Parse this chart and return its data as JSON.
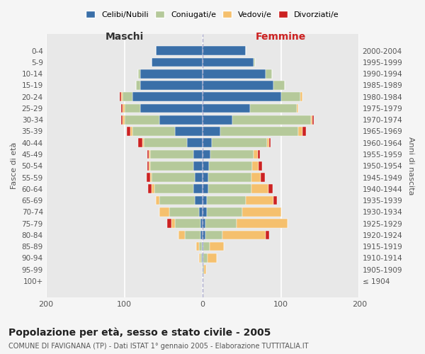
{
  "age_groups": [
    "100+",
    "95-99",
    "90-94",
    "85-89",
    "80-84",
    "75-79",
    "70-74",
    "65-69",
    "60-64",
    "55-59",
    "50-54",
    "45-49",
    "40-44",
    "35-39",
    "30-34",
    "25-29",
    "20-24",
    "15-19",
    "10-14",
    "5-9",
    "0-4"
  ],
  "birth_years": [
    "≤ 1904",
    "1905-1909",
    "1910-1914",
    "1915-1919",
    "1920-1924",
    "1925-1929",
    "1930-1934",
    "1935-1939",
    "1940-1944",
    "1945-1949",
    "1950-1954",
    "1955-1959",
    "1960-1964",
    "1965-1969",
    "1970-1974",
    "1975-1979",
    "1980-1984",
    "1985-1989",
    "1990-1994",
    "1995-1999",
    "2000-2004"
  ],
  "male_celibi": [
    0,
    0,
    1,
    1,
    3,
    3,
    5,
    10,
    12,
    10,
    12,
    12,
    20,
    35,
    55,
    80,
    90,
    80,
    80,
    65,
    60
  ],
  "male_coniugati": [
    0,
    0,
    2,
    4,
    20,
    32,
    38,
    45,
    50,
    55,
    55,
    55,
    55,
    55,
    45,
    20,
    12,
    5,
    2,
    0,
    0
  ],
  "male_vedovi": [
    0,
    0,
    2,
    3,
    8,
    5,
    12,
    5,
    3,
    2,
    2,
    2,
    2,
    2,
    2,
    2,
    2,
    0,
    0,
    0,
    0
  ],
  "male_divorziati": [
    0,
    0,
    0,
    0,
    0,
    5,
    0,
    0,
    5,
    5,
    2,
    2,
    5,
    5,
    2,
    2,
    2,
    0,
    0,
    0,
    0
  ],
  "female_nubili": [
    0,
    0,
    1,
    1,
    3,
    3,
    5,
    5,
    7,
    7,
    8,
    10,
    12,
    22,
    38,
    60,
    100,
    90,
    80,
    65,
    55
  ],
  "female_coniugate": [
    0,
    2,
    5,
    8,
    22,
    40,
    45,
    50,
    55,
    55,
    55,
    55,
    70,
    100,
    100,
    60,
    25,
    15,
    8,
    2,
    0
  ],
  "female_vedove": [
    0,
    2,
    12,
    18,
    55,
    65,
    50,
    35,
    22,
    12,
    8,
    5,
    3,
    5,
    2,
    2,
    2,
    0,
    0,
    0,
    0
  ],
  "female_divorziate": [
    0,
    0,
    0,
    0,
    5,
    0,
    0,
    5,
    5,
    5,
    5,
    3,
    2,
    5,
    2,
    0,
    0,
    0,
    0,
    0,
    0
  ],
  "color_celibi": "#3a6fa8",
  "color_coniugati": "#b5c99a",
  "color_vedovi": "#f5c06e",
  "color_divorziati": "#cc2222",
  "title_main": "Popolazione per età, sesso e stato civile - 2005",
  "title_sub": "COMUNE DI FAVIGNANA (TP) - Dati ISTAT 1° gennaio 2005 - Elaborazione TUTTITALIA.IT",
  "ylabel_left": "Fasce di età",
  "ylabel_right": "Anni di nascita",
  "xlabel_left": "Maschi",
  "xlabel_right": "Femmine",
  "xlim": 200,
  "bg_color": "#f5f5f5",
  "plot_bg": "#e8e8e8"
}
